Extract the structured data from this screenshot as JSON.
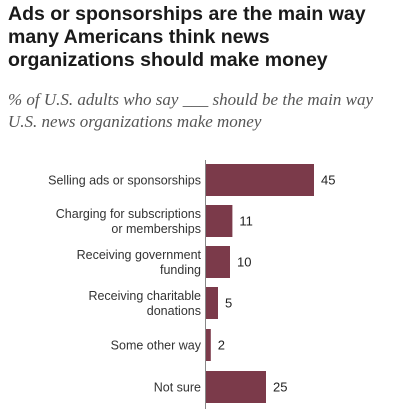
{
  "title": "Ads or sponsorships are the main way many Americans think news organizations should make money",
  "subtitle": "% of U.S. adults who say ___ should be the main way U.S. news organizations make money",
  "chart_data": {
    "type": "bar",
    "orientation": "horizontal",
    "categories": [
      [
        "Selling ads or sponsorships"
      ],
      [
        "Charging for subscriptions",
        "or memberships"
      ],
      [
        "Receiving government",
        "funding"
      ],
      [
        "Receiving charitable",
        "donations"
      ],
      [
        "Some other way"
      ],
      [
        "Not sure"
      ]
    ],
    "values": [
      45,
      11,
      10,
      5,
      2,
      25
    ],
    "xlim": [
      0,
      50
    ],
    "grid": false,
    "legend": "none",
    "bar_color": "#7b3a4a",
    "axis_color": "#888888"
  }
}
